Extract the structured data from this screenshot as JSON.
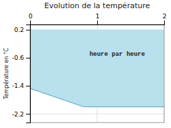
{
  "chart_data": {
    "type": "area",
    "title": "Evolution de la température",
    "ylabel": "Température en °C",
    "x": [
      0,
      0.8,
      2
    ],
    "series": [
      {
        "type": "area",
        "color": "#b8e0ed",
        "values": [
          0.2,
          0.2,
          0.2
        ],
        "base": [
          -1.47,
          -2.0,
          -2.0
        ]
      },
      {
        "type": "line",
        "color": "#6bbdd4",
        "values": [
          -1.47,
          -2.0,
          -2.0
        ]
      }
    ],
    "annotations": [
      {
        "text": "heure par heure",
        "x": 1.3,
        "y": -0.5
      }
    ],
    "xlim": [
      0,
      2.0
    ],
    "xticks": [
      0,
      1,
      2
    ],
    "ylim": [
      -2.45,
      0.35
    ],
    "yticks": [
      0.2,
      -0.6,
      -1.4,
      -2.2
    ],
    "grid": true
  }
}
